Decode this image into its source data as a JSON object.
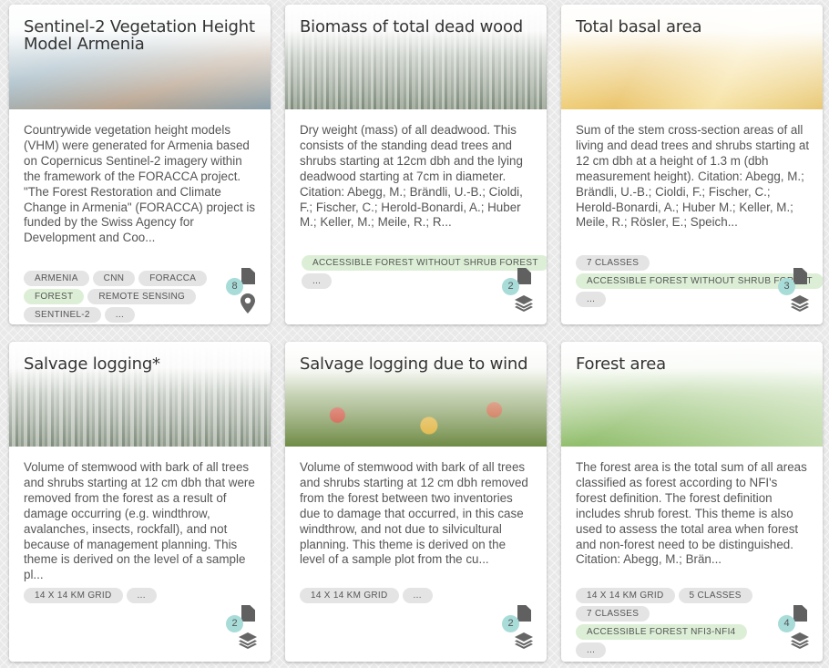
{
  "cards": [
    {
      "title": "Sentinel-2 Vegetation Height Model Armenia",
      "description": "Countrywide vegetation height models (VHM) were generated for Armenia based on Copernicus Sentinel-2 imagery within the framework of the FORACCA project. \"The Forest Restoration and Climate Change in Armenia\" (FORACCA) project is funded by the Swiss Agency for Development and Coo...",
      "tags": [
        {
          "label": "ARMENIA",
          "green": false
        },
        {
          "label": "CNN",
          "green": false
        },
        {
          "label": "FORACCA",
          "green": false
        },
        {
          "label": "FOREST",
          "green": true
        },
        {
          "label": "REMOTE SENSING",
          "green": false
        },
        {
          "label": "SENTINEL-2",
          "green": false
        },
        {
          "label": "...",
          "green": false
        }
      ],
      "count": "8",
      "type_icon": "pin-icon"
    },
    {
      "title": "Biomass of total dead wood",
      "description": "Dry weight (mass) of all deadwood. This consists of the standing dead trees and shrubs starting at 12cm dbh and the lying deadwood starting at 7cm in diameter. Citation: Abegg, M.; Brändli, U.-B.; Cioldi, F.; Fischer, C.; Herold-Bonardi, A.; Huber M.; Keller, M.; Meile, R.; R...",
      "tags": [
        {
          "label": "ACCESSIBLE FOREST WITHOUT SHRUB FOREST",
          "green": true
        },
        {
          "label": "...",
          "green": false
        }
      ],
      "count": "2",
      "type_icon": "layers-icon"
    },
    {
      "title": "Total basal area",
      "description": "Sum of the stem cross-section areas of all living and dead trees and shrubs starting at 12 cm dbh at a height of 1.3 m (dbh measurement height). Citation: Abegg, M.; Brändli, U.-B.; Cioldi, F.; Fischer, C.; Herold-Bonardi, A.; Huber M.; Keller, M.; Meile, R.; Rösler, E.; Speich...",
      "tags": [
        {
          "label": "7 CLASSES",
          "green": false
        },
        {
          "label": "ACCESSIBLE FOREST WITHOUT SHRUB FOREST",
          "green": true
        },
        {
          "label": "...",
          "green": false
        }
      ],
      "count": "3",
      "type_icon": "layers-icon"
    },
    {
      "title": "Salvage logging*",
      "description": "Volume of stemwood with bark of all trees and shrubs starting at 12 cm dbh that were removed from the forest as a result of damage occurring (e.g. windthrow, avalanches, insects, rockfall), and not because of management planning. This theme is derived on the level of a sample pl...",
      "tags": [
        {
          "label": "14 X 14 KM GRID",
          "green": false
        },
        {
          "label": "...",
          "green": false
        }
      ],
      "count": "2",
      "type_icon": "layers-icon"
    },
    {
      "title": "Salvage logging due to wind",
      "description": "Volume of stemwood with bark of all trees and shrubs starting at 12 cm dbh removed from the forest between two inventories due to damage that occurred, in this case windthrow, and not due to silvicultural planning. This theme is derived on the level of a sample plot from the cu...",
      "tags": [
        {
          "label": "14 X 14 KM GRID",
          "green": false
        },
        {
          "label": "...",
          "green": false
        }
      ],
      "count": "2",
      "type_icon": "layers-icon"
    },
    {
      "title": "Forest area",
      "description": "The forest area is the total sum of all areas classified as forest according to NFI's forest definition. The forest definition includes shrub forest. This theme is also used to assess the total area when forest and non-forest need to be distinguished. Citation: Abegg, M.; Brän...",
      "tags": [
        {
          "label": "14 X 14 KM GRID",
          "green": false
        },
        {
          "label": "5 CLASSES",
          "green": false
        },
        {
          "label": "7 CLASSES",
          "green": false
        },
        {
          "label": "ACCESSIBLE FOREST NFI3-NFI4",
          "green": true
        },
        {
          "label": "...",
          "green": false
        }
      ],
      "count": "4",
      "type_icon": "layers-icon"
    }
  ]
}
